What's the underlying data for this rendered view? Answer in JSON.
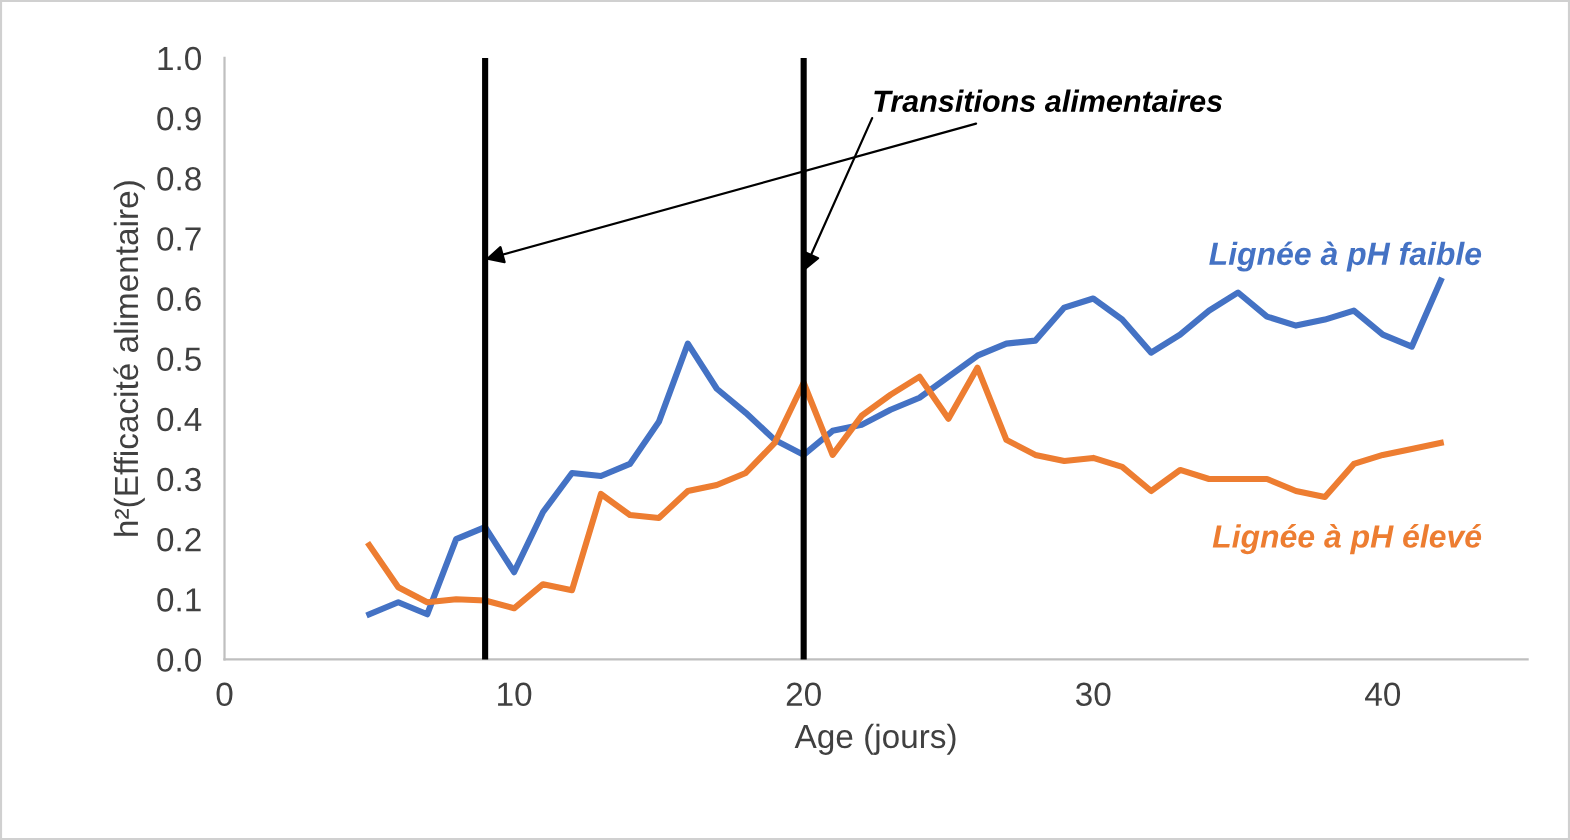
{
  "chart_data": {
    "type": "line",
    "xlabel": "Age (jours)",
    "ylabel": "h²(Efficacité alimentaire)",
    "x": [
      5,
      6,
      7,
      8,
      9,
      10,
      11,
      12,
      13,
      14,
      15,
      16,
      17,
      18,
      19,
      20,
      21,
      22,
      23,
      24,
      25,
      26,
      27,
      28,
      29,
      30,
      31,
      32,
      33,
      34,
      35,
      36,
      37,
      38,
      39,
      40,
      41,
      42
    ],
    "series": [
      {
        "name": "Lignée à pH faible",
        "color": "#4472c4",
        "values": [
          0.075,
          0.095,
          0.075,
          0.2,
          0.22,
          0.145,
          0.245,
          0.31,
          0.305,
          0.325,
          0.395,
          0.525,
          0.45,
          0.41,
          0.365,
          0.34,
          0.38,
          0.39,
          0.415,
          0.435,
          0.47,
          0.505,
          0.525,
          0.53,
          0.585,
          0.6,
          0.565,
          0.51,
          0.54,
          0.58,
          0.61,
          0.57,
          0.555,
          0.565,
          0.58,
          0.54,
          0.52,
          0.63
        ]
      },
      {
        "name": "Lignée à pH élevé",
        "color": "#ed7d31",
        "values": [
          0.19,
          0.12,
          0.095,
          0.1,
          0.098,
          0.085,
          0.125,
          0.115,
          0.275,
          0.24,
          0.235,
          0.28,
          0.29,
          0.31,
          0.36,
          0.46,
          0.34,
          0.405,
          0.44,
          0.47,
          0.4,
          0.485,
          0.365,
          0.34,
          0.33,
          0.335,
          0.32,
          0.28,
          0.315,
          0.3,
          0.3,
          0.3,
          0.28,
          0.27,
          0.325,
          0.34,
          0.35,
          0.36
        ]
      }
    ],
    "xlim": [
      0,
      45
    ],
    "xticks": [
      0,
      10,
      20,
      30,
      40
    ],
    "ylim": [
      0,
      1
    ],
    "yticks": [
      {
        "value": 0,
        "label": "0.0"
      },
      {
        "value": 0.1,
        "label": "0.1"
      },
      {
        "value": 0.2,
        "label": "0.2"
      },
      {
        "value": 0.3,
        "label": "0.3"
      },
      {
        "value": 0.4,
        "label": "0.4"
      },
      {
        "value": 0.5,
        "label": "0.5"
      },
      {
        "value": 0.6,
        "label": "0.6"
      },
      {
        "value": 0.7,
        "label": "0.7"
      },
      {
        "value": 0.8,
        "label": "0.8"
      },
      {
        "value": 0.9,
        "label": "0.9"
      },
      {
        "value": 1,
        "label": "1.0"
      }
    ],
    "ref_lines": [
      {
        "axis": "x",
        "value": 9,
        "color": "#000000"
      },
      {
        "axis": "x",
        "value": 20,
        "color": "#000000"
      }
    ],
    "annotations": [
      {
        "text": "Transitions alimentaires",
        "x": 9,
        "y": 0.665
      }
    ],
    "grid": false,
    "legend": false,
    "marker": "none",
    "line_style": "solid"
  }
}
